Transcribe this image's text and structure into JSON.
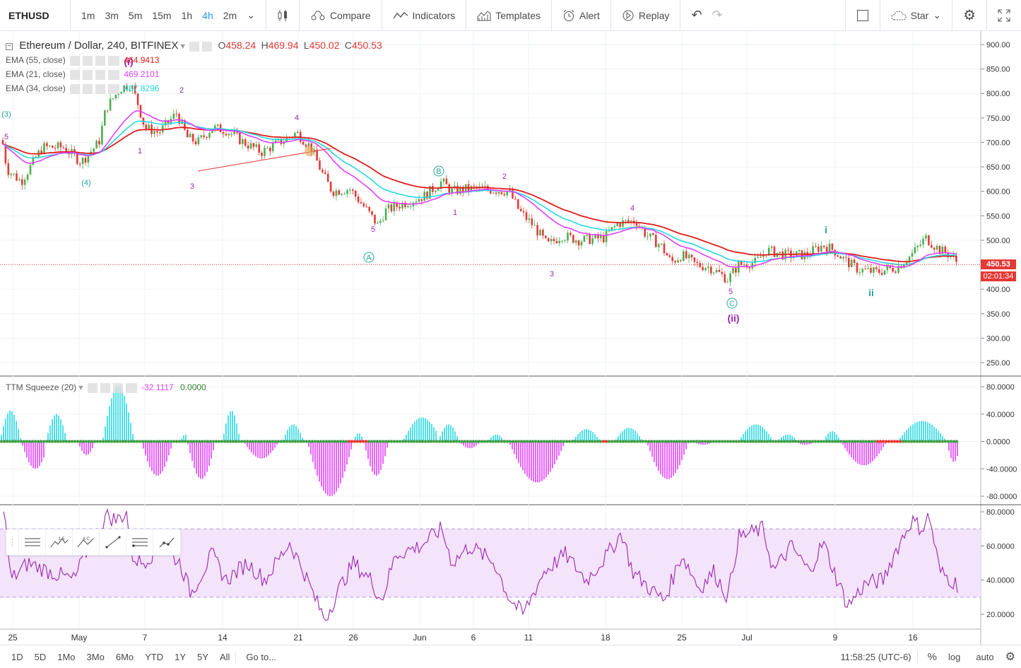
{
  "toolbar": {
    "symbol": "ETHUSD",
    "intervals": [
      "1m",
      "3m",
      "5m",
      "15m",
      "1h",
      "4h",
      "2m"
    ],
    "active_interval": "4h",
    "compare": "Compare",
    "indicators": "Indicators",
    "templates": "Templates",
    "alert": "Alert",
    "replay": "Replay",
    "star": "Star"
  },
  "legend": {
    "title": "Ethereum / Dollar, 240, BITFINEX",
    "o_label": "O",
    "o": "458.24",
    "h_label": "H",
    "h": "469.94",
    "l_label": "L",
    "l": "450.02",
    "c_label": "C",
    "c": "450.53",
    "ema55_label": "EMA (55, close)",
    "ema55": "464.9413",
    "ema21_label": "EMA (21, close)",
    "ema21": "469.2101",
    "ema34_label": "EMA (34, close)",
    "ema34": "467.8296",
    "ttm_label": "TTM Squeeze (20)",
    "ttm_v1": "-32.1117",
    "ttm_v2": "0.0000"
  },
  "colors": {
    "ema55": "#e41b1b",
    "ema21": "#e040fb",
    "ema34": "#26d7e0",
    "up": "#4caf50",
    "down": "#e53935",
    "rsi": "#9c27b0",
    "rsi_band": "#f3e3fb",
    "hist_pos": "#26d7e0",
    "hist_neg": "#e040fb"
  },
  "price_axis": [
    "900.00",
    "850.00",
    "800.00",
    "750.00",
    "700.00",
    "650.00",
    "600.00",
    "550.00",
    "500.00",
    "450.00",
    "400.00",
    "350.00",
    "300.00",
    "250.00"
  ],
  "last_price": "450.53",
  "countdown": "02:01:34",
  "ttm_axis": [
    "80.0000",
    "40.0000",
    "0.0000",
    "-40.0000",
    "-80.0000"
  ],
  "rsi_axis": [
    "80.0000",
    "60.0000",
    "40.0000",
    "20.0000"
  ],
  "time_axis": [
    "25",
    "May",
    "7",
    "14",
    "21",
    "26",
    "Jun",
    "6",
    "11",
    "18",
    "25",
    "Jul",
    "9",
    "16"
  ],
  "waves": [
    {
      "t": "(3)",
      "c": "#26a69a"
    },
    {
      "t": "5",
      "c": "#9c27b0"
    },
    {
      "t": "(4)",
      "c": "#26a69a"
    },
    {
      "t": "(i)",
      "c": "#9c27b0"
    },
    {
      "t": "2",
      "c": "#9c27b0"
    },
    {
      "t": "1",
      "c": "#9c27b0"
    },
    {
      "t": "3",
      "c": "#9c27b0"
    },
    {
      "t": "4",
      "c": "#9c27b0"
    },
    {
      "t": "5",
      "c": "#9c27b0"
    },
    {
      "t": "A",
      "c": "#26a69a"
    },
    {
      "t": "B",
      "c": "#26a69a"
    },
    {
      "t": "1",
      "c": "#9c27b0"
    },
    {
      "t": "2",
      "c": "#9c27b0"
    },
    {
      "t": "3",
      "c": "#9c27b0"
    },
    {
      "t": "4",
      "c": "#9c27b0"
    },
    {
      "t": "5",
      "c": "#9c27b0"
    },
    {
      "t": "C",
      "c": "#26a69a"
    },
    {
      "t": "(ii)",
      "c": "#9c27b0"
    },
    {
      "t": "i",
      "c": "#26a69a"
    },
    {
      "t": "ii",
      "c": "#26a69a"
    }
  ],
  "bottom": {
    "ranges": [
      "1D",
      "5D",
      "1Mo",
      "3Mo",
      "6Mo",
      "YTD",
      "1Y",
      "5Y",
      "All"
    ],
    "goto": "Go to...",
    "time": "11:58:25 (UTC-6)",
    "pct": "%",
    "log": "log",
    "auto": "auto"
  }
}
